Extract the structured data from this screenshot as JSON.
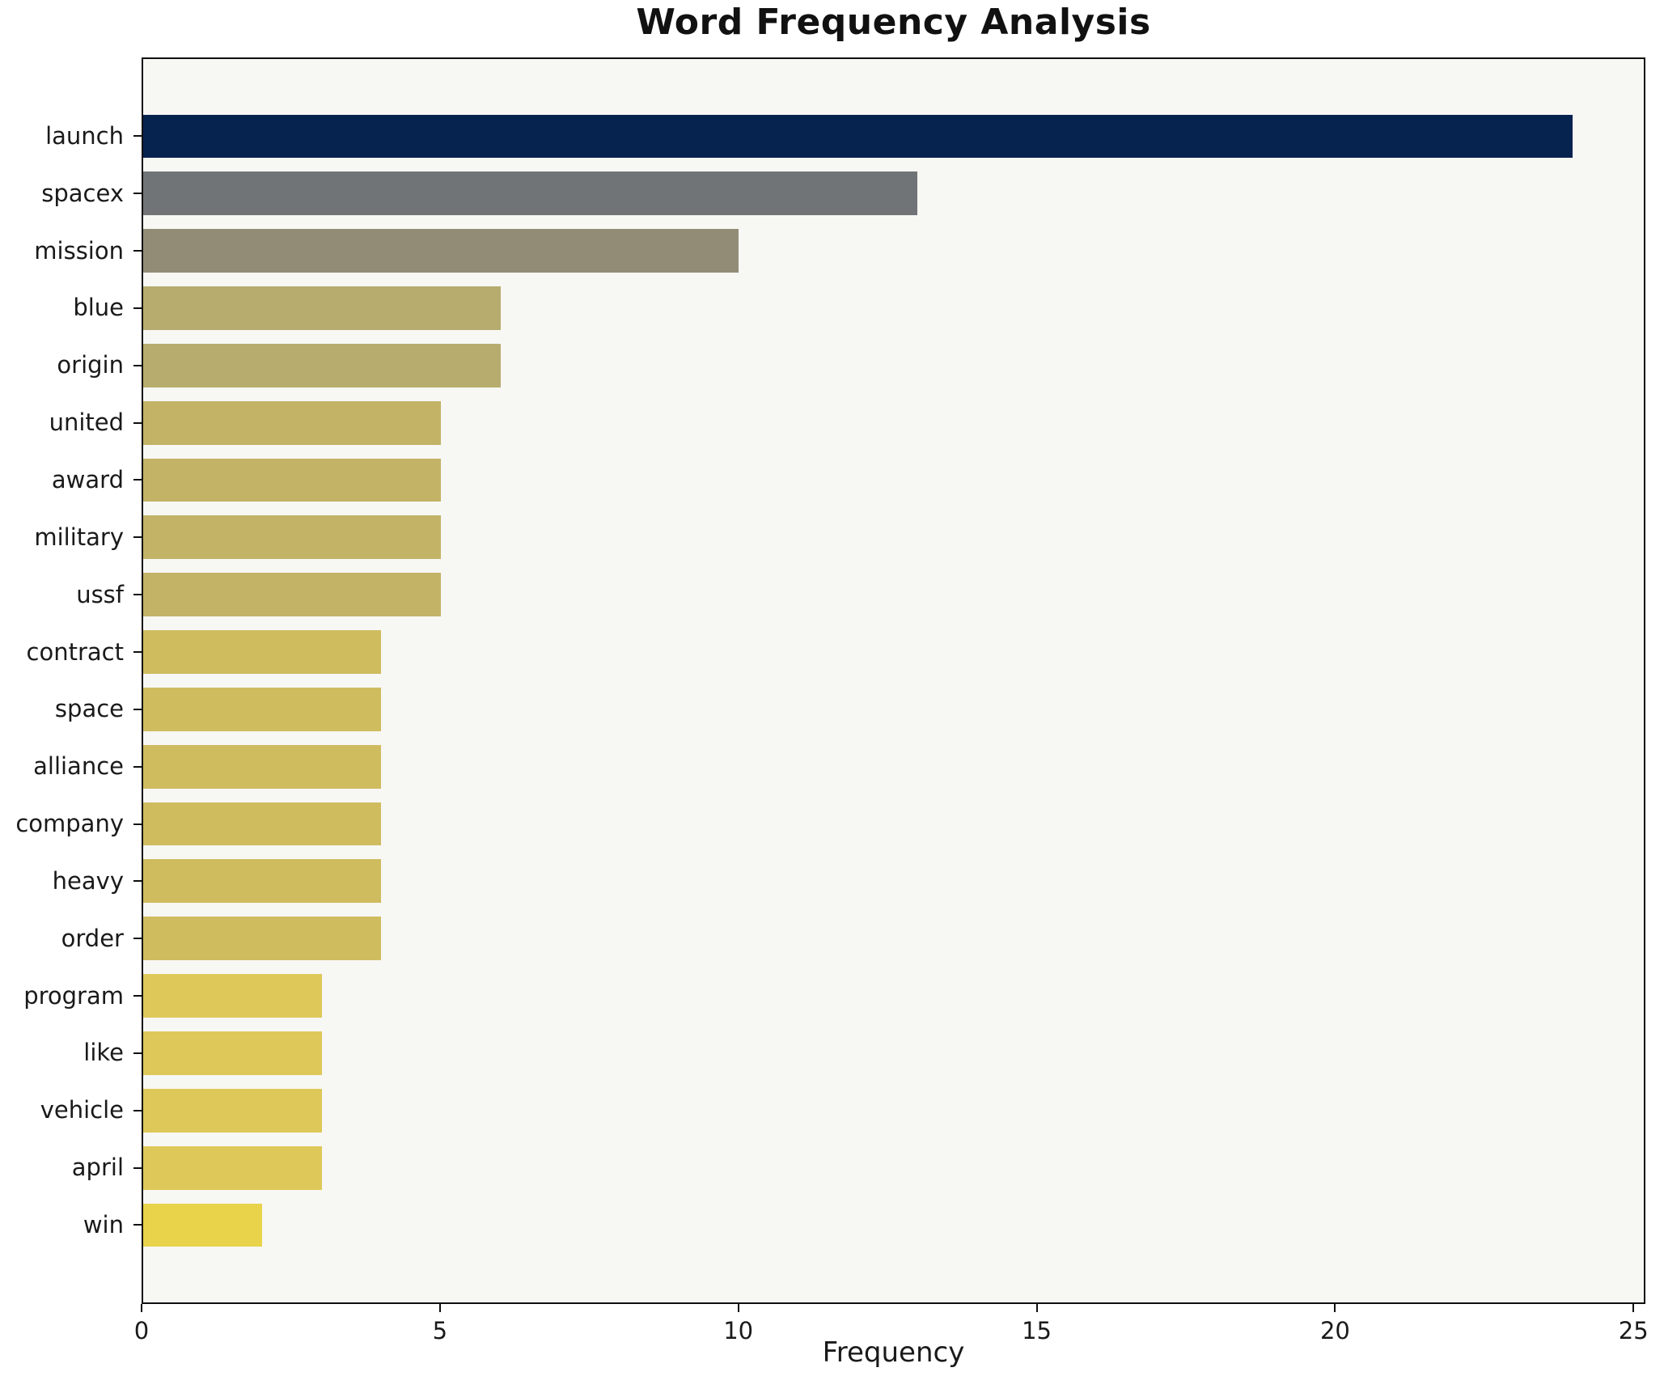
{
  "chart_data": {
    "type": "bar",
    "orientation": "horizontal",
    "title": "Word Frequency Analysis",
    "xlabel": "Frequency",
    "ylabel": "",
    "categories": [
      "launch",
      "spacex",
      "mission",
      "blue",
      "origin",
      "united",
      "award",
      "military",
      "ussf",
      "contract",
      "space",
      "alliance",
      "company",
      "heavy",
      "order",
      "program",
      "like",
      "vehicle",
      "april",
      "win"
    ],
    "values": [
      24,
      13,
      10,
      6,
      6,
      5,
      5,
      5,
      5,
      4,
      4,
      4,
      4,
      4,
      4,
      3,
      3,
      3,
      3,
      2
    ],
    "bar_colors": [
      "#06224e",
      "#717477",
      "#928c77",
      "#b7ac6e",
      "#b7ac6e",
      "#c2b367",
      "#c2b367",
      "#c2b367",
      "#c2b367",
      "#cfbc5f",
      "#cfbc5f",
      "#cfbc5f",
      "#cfbc5f",
      "#cfbc5f",
      "#cfbc5f",
      "#dec859",
      "#dec859",
      "#dec859",
      "#dec859",
      "#e8d34b"
    ],
    "xlim": [
      0,
      25.2
    ],
    "xticks": [
      0,
      5,
      10,
      15,
      20,
      25
    ],
    "grid": false,
    "legend_position": "none",
    "plot_background": "#f7f7f4",
    "figure_background": "#ffffff",
    "axis_color": "#0f0f0f"
  }
}
